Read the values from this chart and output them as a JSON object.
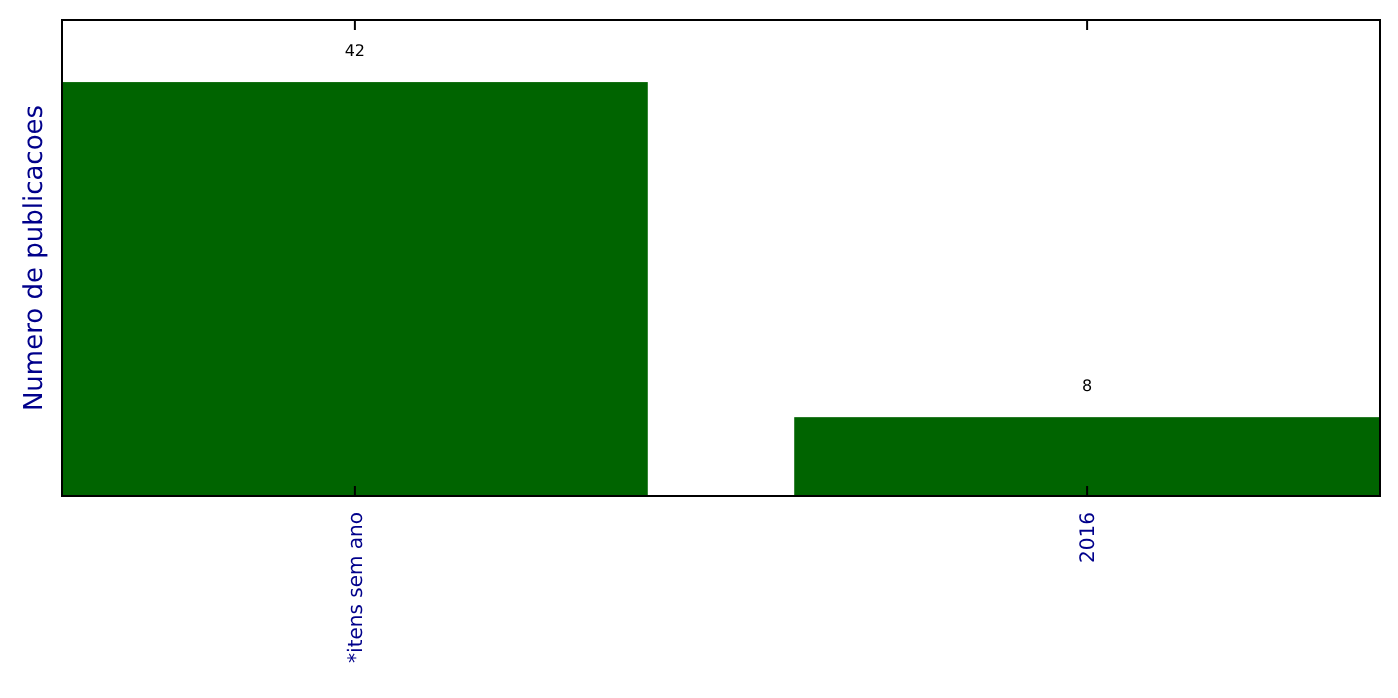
{
  "chart_data": {
    "type": "bar",
    "ylabel": "Numero de publicacoes",
    "categories": [
      "*itens sem ano",
      "2016"
    ],
    "values": [
      42,
      8
    ],
    "color": "#006400",
    "ylim": [
      0,
      48.3
    ],
    "data_labels": true,
    "tick_labels": "x"
  }
}
